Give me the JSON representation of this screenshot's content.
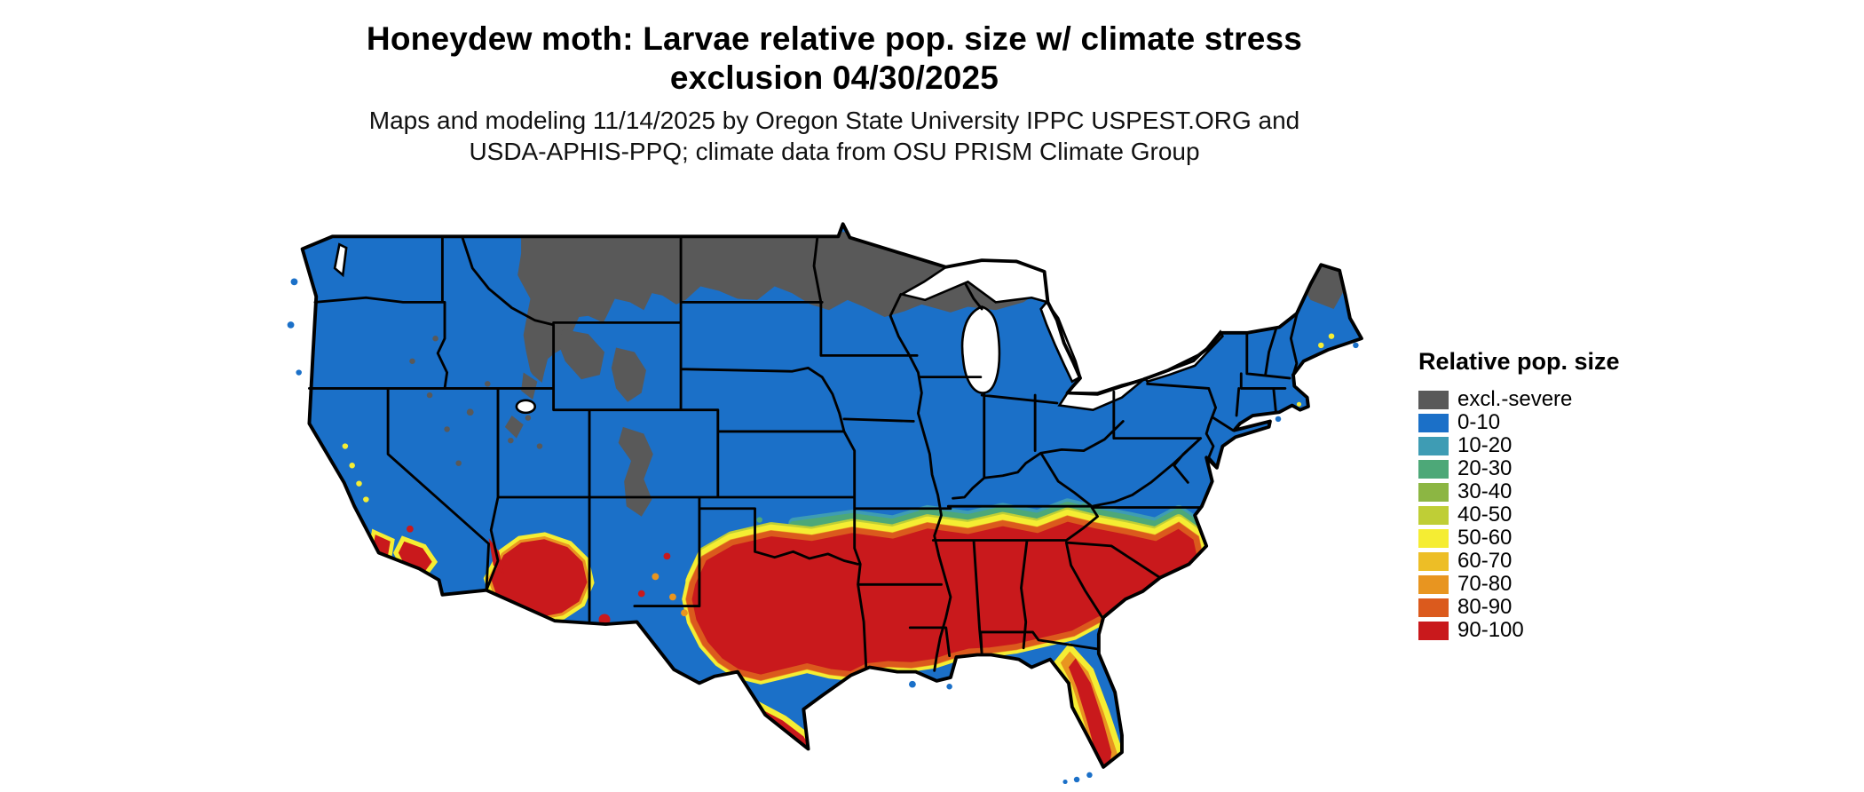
{
  "title": {
    "line1": "Honeydew moth: Larvae relative pop. size w/ climate stress",
    "line2": "exclusion 04/30/2025"
  },
  "subtitle": {
    "line1": "Maps and modeling 11/14/2025 by Oregon State University IPPC USPEST.ORG and",
    "line2": "USDA-APHIS-PPQ; climate data from OSU PRISM Climate Group"
  },
  "legend": {
    "title": "Relative pop. size",
    "items": [
      {
        "label": "excl.-severe",
        "color": "#595959"
      },
      {
        "label": "0-10",
        "color": "#1B70C8"
      },
      {
        "label": "10-20",
        "color": "#3E9CB4"
      },
      {
        "label": "20-30",
        "color": "#4DA878"
      },
      {
        "label": "30-40",
        "color": "#8CB643"
      },
      {
        "label": "40-50",
        "color": "#BFCE36"
      },
      {
        "label": "50-60",
        "color": "#F5ED33"
      },
      {
        "label": "60-70",
        "color": "#EDBE26"
      },
      {
        "label": "70-80",
        "color": "#E89520"
      },
      {
        "label": "80-90",
        "color": "#DB5A1D"
      },
      {
        "label": "90-100",
        "color": "#C9191C"
      }
    ]
  }
}
